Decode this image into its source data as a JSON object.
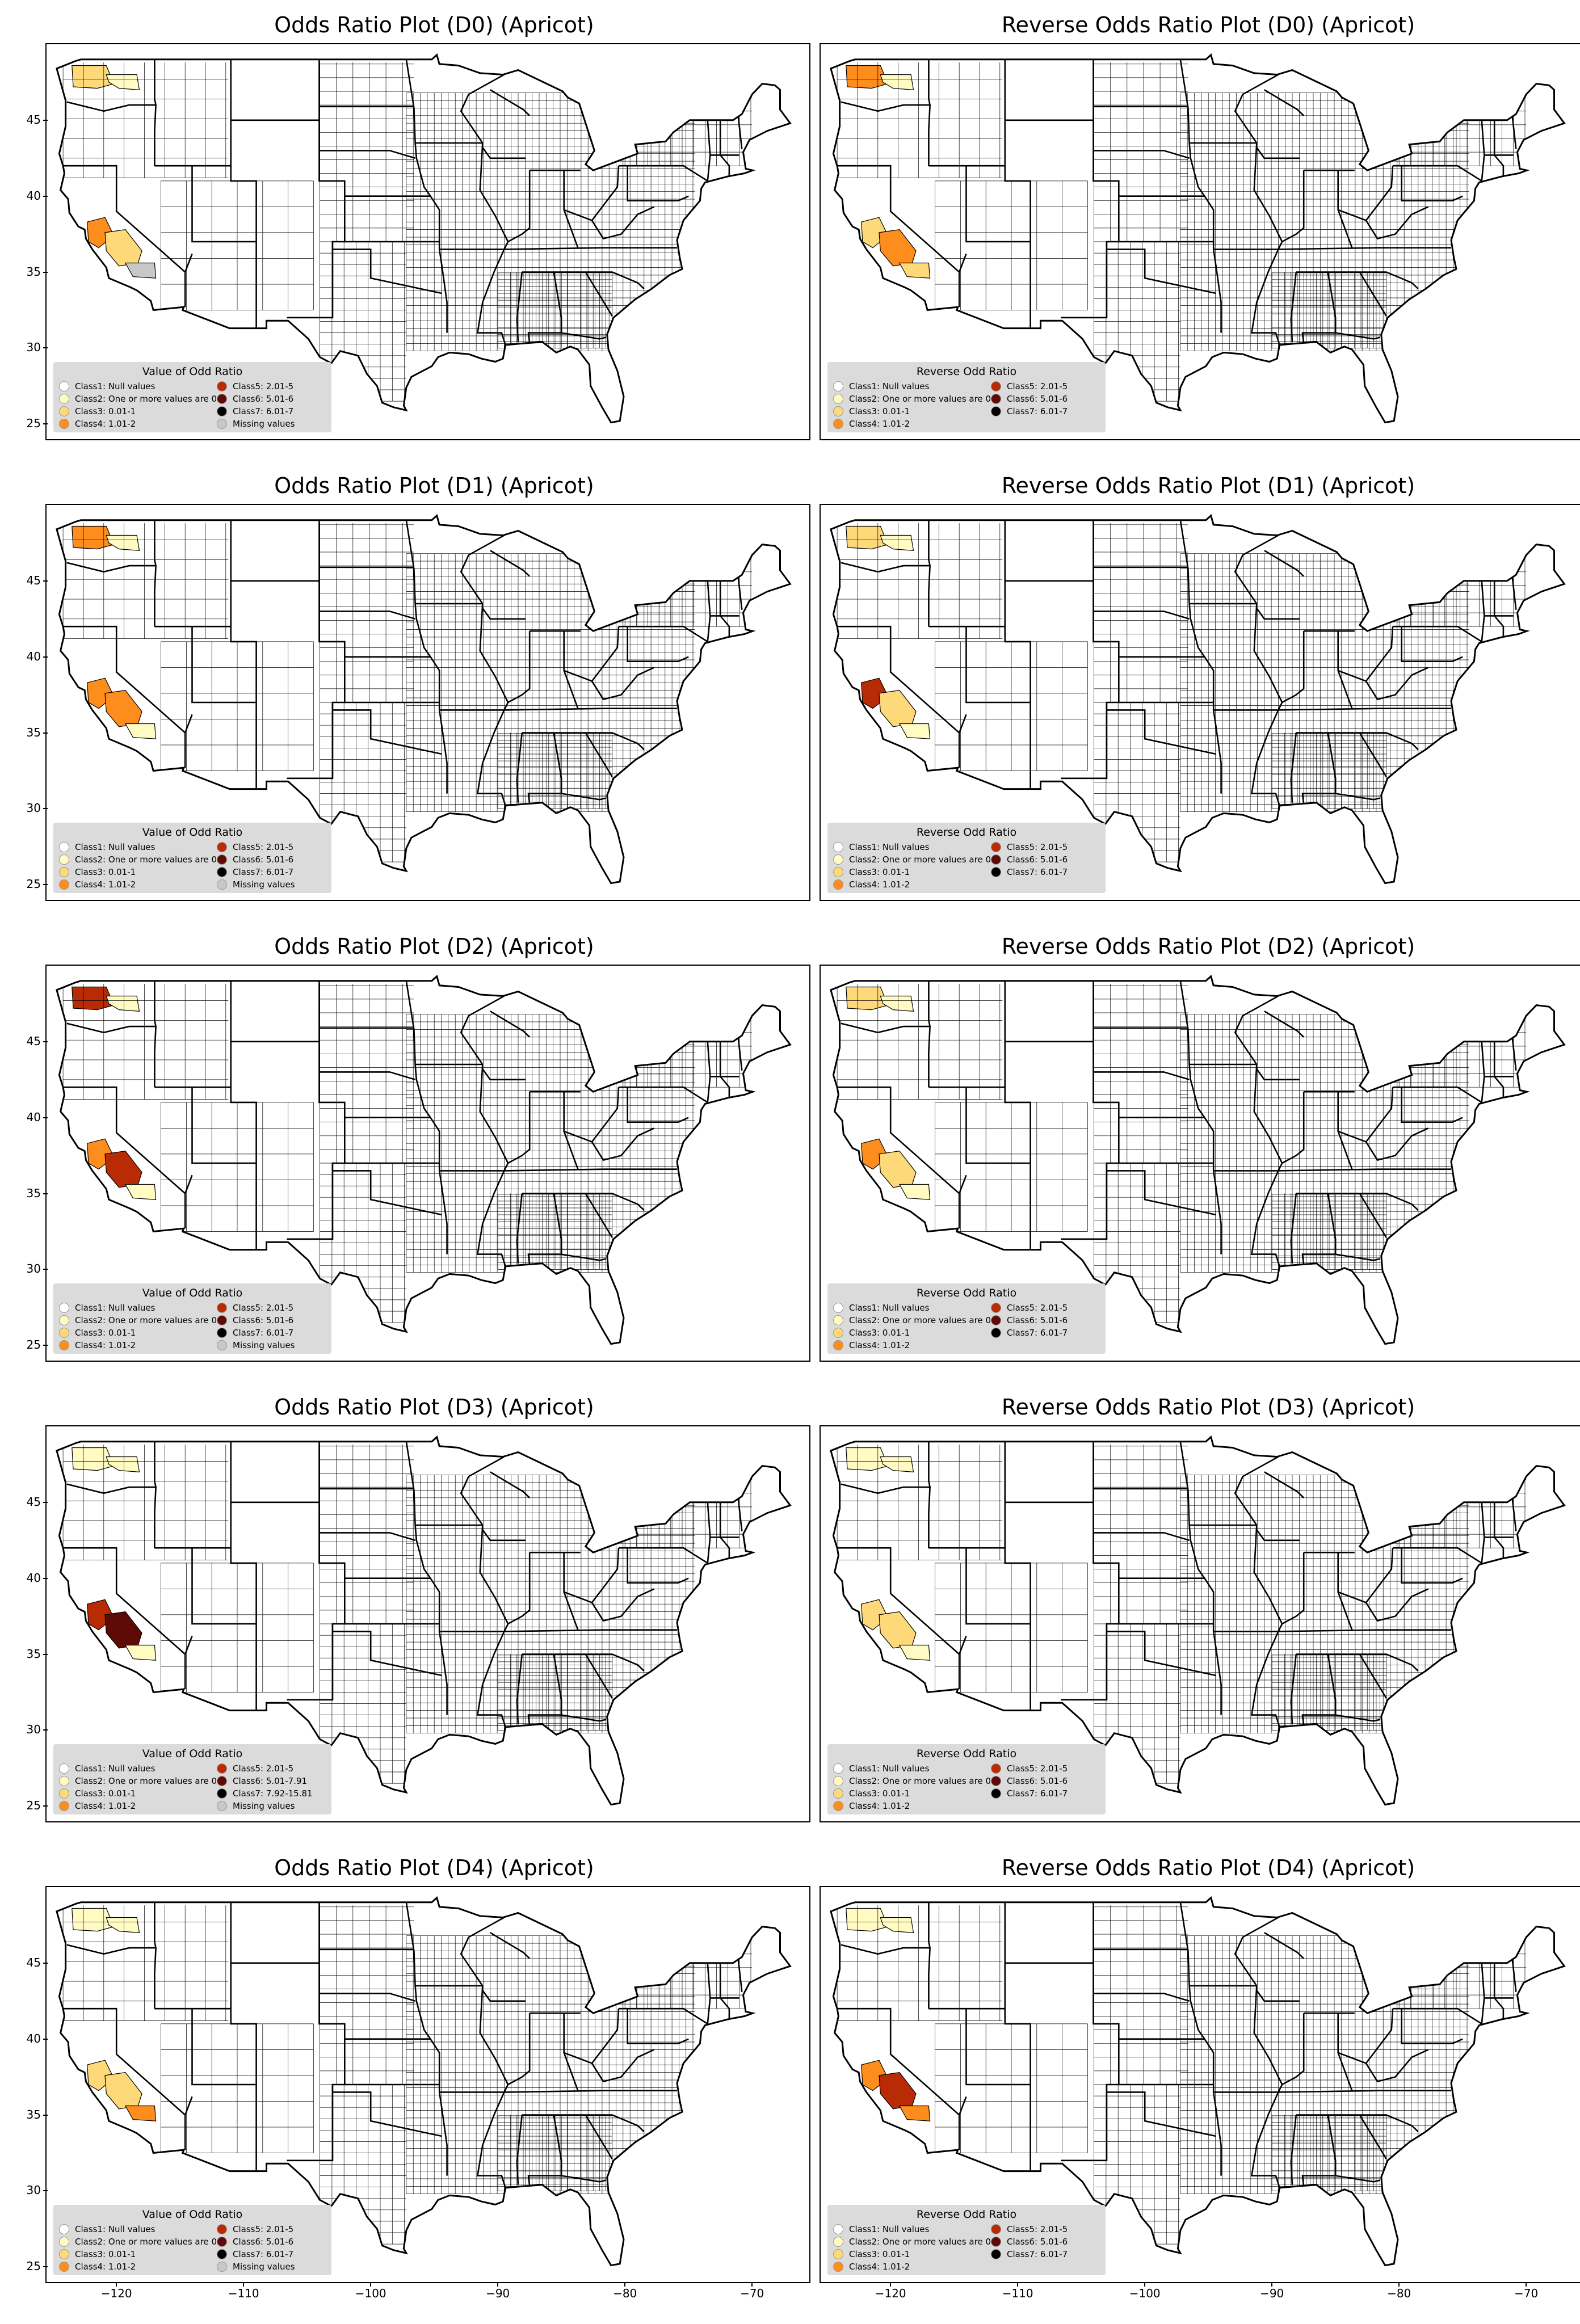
{
  "colors": {
    "class1": "#ffffff",
    "class2": "#fffbc2",
    "class3": "#fed97a",
    "class4": "#fd8d1c",
    "class5": "#b82b05",
    "class6": "#5e0a07",
    "class7": "#000000",
    "missing": "#c8c8c8"
  },
  "x_ticks": [
    "−120",
    "−110",
    "−100",
    "−90",
    "−80",
    "−70"
  ],
  "y_ticks": [
    "45",
    "40",
    "35",
    "30",
    "25"
  ],
  "panels": [
    {
      "title": "Odds Ratio Plot (D0) (Apricot)",
      "legend_title": "Value of Odd Ratio",
      "legend_left": [
        {
          "label": "Class1: Null values",
          "color": "#ffffff"
        },
        {
          "label": "Class2: One or more values are 0",
          "color": "#fffbc2"
        },
        {
          "label": "Class3: 0.01-1",
          "color": "#fed97a"
        },
        {
          "label": "Class4: 1.01-2",
          "color": "#fd8d1c"
        }
      ],
      "legend_right": [
        {
          "label": "Class5: 2.01-5",
          "color": "#b82b05"
        },
        {
          "label": "Class6: 5.01-6",
          "color": "#5e0a07"
        },
        {
          "label": "Class7: 6.01-7",
          "color": "#000000"
        },
        {
          "label": "Missing values",
          "color": "#c8c8c8"
        }
      ],
      "highlights": {
        "wa1": "#fed97a",
        "wa2": "#fffbc2",
        "ca1": "#fd8d1c",
        "ca2": "#fed97a",
        "ca3": "#c8c8c8"
      }
    },
    {
      "title": "Reverse Odds Ratio Plot (D0) (Apricot)",
      "legend_title": "Reverse Odd Ratio",
      "legend_left": [
        {
          "label": "Class1: Null values",
          "color": "#ffffff"
        },
        {
          "label": "Class2: One or more values are 0",
          "color": "#fffbc2"
        },
        {
          "label": "Class3: 0.01-1",
          "color": "#fed97a"
        },
        {
          "label": "Class4: 1.01-2",
          "color": "#fd8d1c"
        }
      ],
      "legend_right": [
        {
          "label": "Class5: 2.01-5",
          "color": "#b82b05"
        },
        {
          "label": "Class6: 5.01-6",
          "color": "#5e0a07"
        },
        {
          "label": "Class7: 6.01-7",
          "color": "#000000"
        }
      ],
      "highlights": {
        "wa1": "#fd8d1c",
        "wa2": "#fffbc2",
        "ca1": "#fed97a",
        "ca2": "#fd8d1c",
        "ca3": "#fed97a"
      }
    },
    {
      "title": "Odds Ratio Plot (D1) (Apricot)",
      "legend_title": "Value of Odd Ratio",
      "legend_left": [
        {
          "label": "Class1: Null values",
          "color": "#ffffff"
        },
        {
          "label": "Class2: One or more values are 0",
          "color": "#fffbc2"
        },
        {
          "label": "Class3: 0.01-1",
          "color": "#fed97a"
        },
        {
          "label": "Class4: 1.01-2",
          "color": "#fd8d1c"
        }
      ],
      "legend_right": [
        {
          "label": "Class5: 2.01-5",
          "color": "#b82b05"
        },
        {
          "label": "Class6: 5.01-6",
          "color": "#5e0a07"
        },
        {
          "label": "Class7: 6.01-7",
          "color": "#000000"
        },
        {
          "label": "Missing values",
          "color": "#c8c8c8"
        }
      ],
      "highlights": {
        "wa1": "#fd8d1c",
        "wa2": "#fffbc2",
        "ca1": "#fd8d1c",
        "ca2": "#fd8d1c",
        "ca3": "#fffbc2"
      }
    },
    {
      "title": "Reverse Odds Ratio Plot (D1) (Apricot)",
      "legend_title": "Reverse Odd Ratio",
      "legend_left": [
        {
          "label": "Class1: Null values",
          "color": "#ffffff"
        },
        {
          "label": "Class2: One or more values are 0",
          "color": "#fffbc2"
        },
        {
          "label": "Class3: 0.01-1",
          "color": "#fed97a"
        },
        {
          "label": "Class4: 1.01-2",
          "color": "#fd8d1c"
        }
      ],
      "legend_right": [
        {
          "label": "Class5: 2.01-5",
          "color": "#b82b05"
        },
        {
          "label": "Class6: 5.01-6",
          "color": "#5e0a07"
        },
        {
          "label": "Class7: 6.01-7",
          "color": "#000000"
        }
      ],
      "highlights": {
        "wa1": "#fed97a",
        "wa2": "#fffbc2",
        "ca1": "#b82b05",
        "ca2": "#fed97a",
        "ca3": "#fffbc2"
      }
    },
    {
      "title": "Odds Ratio Plot (D2) (Apricot)",
      "legend_title": "Value of Odd Ratio",
      "legend_left": [
        {
          "label": "Class1: Null values",
          "color": "#ffffff"
        },
        {
          "label": "Class2: One or more values are 0",
          "color": "#fffbc2"
        },
        {
          "label": "Class3: 0.01-1",
          "color": "#fed97a"
        },
        {
          "label": "Class4: 1.01-2",
          "color": "#fd8d1c"
        }
      ],
      "legend_right": [
        {
          "label": "Class5: 2.01-5",
          "color": "#b82b05"
        },
        {
          "label": "Class6: 5.01-6",
          "color": "#5e0a07"
        },
        {
          "label": "Class7: 6.01-7",
          "color": "#000000"
        },
        {
          "label": "Missing values",
          "color": "#c8c8c8"
        }
      ],
      "highlights": {
        "wa1": "#b82b05",
        "wa2": "#fffbc2",
        "ca1": "#fd8d1c",
        "ca2": "#b82b05",
        "ca3": "#fffbc2"
      }
    },
    {
      "title": "Reverse Odds Ratio Plot (D2) (Apricot)",
      "legend_title": "Reverse Odd Ratio",
      "legend_left": [
        {
          "label": "Class1: Null values",
          "color": "#ffffff"
        },
        {
          "label": "Class2: One or more values are 0",
          "color": "#fffbc2"
        },
        {
          "label": "Class3: 0.01-1",
          "color": "#fed97a"
        },
        {
          "label": "Class4: 1.01-2",
          "color": "#fd8d1c"
        }
      ],
      "legend_right": [
        {
          "label": "Class5: 2.01-5",
          "color": "#b82b05"
        },
        {
          "label": "Class6: 5.01-6",
          "color": "#5e0a07"
        },
        {
          "label": "Class7: 6.01-7",
          "color": "#000000"
        }
      ],
      "highlights": {
        "wa1": "#fed97a",
        "wa2": "#fffbc2",
        "ca1": "#fd8d1c",
        "ca2": "#fed97a",
        "ca3": "#fffbc2"
      }
    },
    {
      "title": "Odds Ratio Plot (D3) (Apricot)",
      "legend_title": "Value of Odd Ratio",
      "legend_left": [
        {
          "label": "Class1: Null values",
          "color": "#ffffff"
        },
        {
          "label": "Class2: One or more values are 0",
          "color": "#fffbc2"
        },
        {
          "label": "Class3: 0.01-1",
          "color": "#fed97a"
        },
        {
          "label": "Class4: 1.01-2",
          "color": "#fd8d1c"
        }
      ],
      "legend_right": [
        {
          "label": "Class5: 2.01-5",
          "color": "#b82b05"
        },
        {
          "label": "Class6: 5.01-7.91",
          "color": "#5e0a07"
        },
        {
          "label": "Class7: 7.92-15.81",
          "color": "#000000"
        },
        {
          "label": "Missing values",
          "color": "#c8c8c8"
        }
      ],
      "highlights": {
        "wa1": "#fffbc2",
        "wa2": "#fffbc2",
        "ca1": "#b82b05",
        "ca2": "#5e0a07",
        "ca3": "#fffbc2"
      }
    },
    {
      "title": "Reverse Odds Ratio Plot (D3) (Apricot)",
      "legend_title": "Reverse Odd Ratio",
      "legend_left": [
        {
          "label": "Class1: Null values",
          "color": "#ffffff"
        },
        {
          "label": "Class2: One or more values are 0",
          "color": "#fffbc2"
        },
        {
          "label": "Class3: 0.01-1",
          "color": "#fed97a"
        },
        {
          "label": "Class4: 1.01-2",
          "color": "#fd8d1c"
        }
      ],
      "legend_right": [
        {
          "label": "Class5: 2.01-5",
          "color": "#b82b05"
        },
        {
          "label": "Class6: 5.01-6",
          "color": "#5e0a07"
        },
        {
          "label": "Class7: 6.01-7",
          "color": "#000000"
        }
      ],
      "highlights": {
        "wa1": "#fffbc2",
        "wa2": "#fffbc2",
        "ca1": "#fed97a",
        "ca2": "#fed97a",
        "ca3": "#fffbc2"
      }
    },
    {
      "title": "Odds Ratio Plot (D4) (Apricot)",
      "legend_title": "Value of Odd Ratio",
      "legend_left": [
        {
          "label": "Class1: Null values",
          "color": "#ffffff"
        },
        {
          "label": "Class2: One or more values are 0",
          "color": "#fffbc2"
        },
        {
          "label": "Class3: 0.01-1",
          "color": "#fed97a"
        },
        {
          "label": "Class4: 1.01-2",
          "color": "#fd8d1c"
        }
      ],
      "legend_right": [
        {
          "label": "Class5: 2.01-5",
          "color": "#b82b05"
        },
        {
          "label": "Class6: 5.01-6",
          "color": "#5e0a07"
        },
        {
          "label": "Class7: 6.01-7",
          "color": "#000000"
        },
        {
          "label": "Missing values",
          "color": "#c8c8c8"
        }
      ],
      "highlights": {
        "wa1": "#fffbc2",
        "wa2": "#fffbc2",
        "ca1": "#fed97a",
        "ca2": "#fed97a",
        "ca3": "#fd8d1c"
      }
    },
    {
      "title": "Reverse Odds Ratio Plot (D4) (Apricot)",
      "legend_title": "Reverse Odd Ratio",
      "legend_left": [
        {
          "label": "Class1: Null values",
          "color": "#ffffff"
        },
        {
          "label": "Class2: One or more values are 0",
          "color": "#fffbc2"
        },
        {
          "label": "Class3: 0.01-1",
          "color": "#fed97a"
        },
        {
          "label": "Class4: 1.01-2",
          "color": "#fd8d1c"
        }
      ],
      "legend_right": [
        {
          "label": "Class5: 2.01-5",
          "color": "#b82b05"
        },
        {
          "label": "Class6: 5.01-6",
          "color": "#5e0a07"
        },
        {
          "label": "Class7: 6.01-7",
          "color": "#000000"
        }
      ],
      "highlights": {
        "wa1": "#fffbc2",
        "wa2": "#fffbc2",
        "ca1": "#fd8d1c",
        "ca2": "#b82b05",
        "ca3": "#fd8d1c"
      }
    }
  ]
}
